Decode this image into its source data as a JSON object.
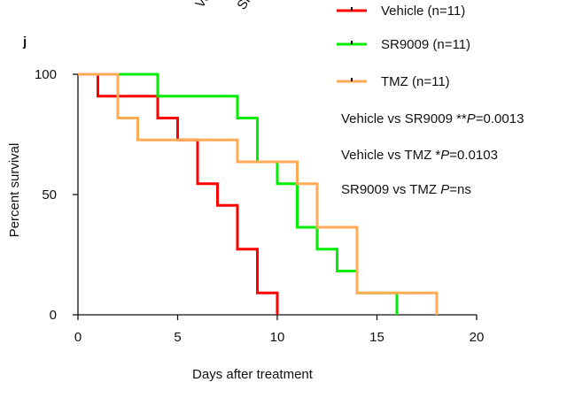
{
  "panel_label": "j",
  "top_fragments": [
    "Ve",
    "SR"
  ],
  "chart_data": {
    "type": "line",
    "step": true,
    "xlabel": "Days after treatment",
    "ylabel": "Percent survival",
    "xlim": [
      0,
      20
    ],
    "ylim": [
      0,
      100
    ],
    "xticks": [
      0,
      5,
      10,
      15,
      20
    ],
    "yticks": [
      0,
      50,
      100
    ],
    "grid": false,
    "legend_position": "top-right",
    "series": [
      {
        "name": "Vehicle (n=11)",
        "color": "#ff0000",
        "points": [
          [
            0,
            100
          ],
          [
            1,
            90.9
          ],
          [
            4,
            81.8
          ],
          [
            5,
            72.7
          ],
          [
            6,
            54.5
          ],
          [
            7,
            45.5
          ],
          [
            8,
            27.3
          ],
          [
            9,
            9.1
          ],
          [
            10,
            0
          ]
        ]
      },
      {
        "name": "SR9009 (n=11)",
        "color": "#00ee00",
        "points": [
          [
            0,
            100
          ],
          [
            4,
            90.9
          ],
          [
            8,
            81.8
          ],
          [
            9,
            63.6
          ],
          [
            10,
            54.5
          ],
          [
            11,
            36.4
          ],
          [
            12,
            27.3
          ],
          [
            13,
            18.2
          ],
          [
            14,
            9.1
          ],
          [
            16,
            0
          ]
        ]
      },
      {
        "name": "TMZ (n=11)",
        "color": "#ffaa55",
        "points": [
          [
            0,
            100
          ],
          [
            2,
            81.8
          ],
          [
            3,
            72.7
          ],
          [
            8,
            63.6
          ],
          [
            11,
            54.5
          ],
          [
            12,
            36.4
          ],
          [
            14,
            9.1
          ],
          [
            18,
            0
          ]
        ]
      }
    ],
    "annotations": [
      {
        "pre": "Vehicle vs SR9009 **",
        "p": "P",
        "post": "=0.0013"
      },
      {
        "pre": "Vehicle vs TMZ *",
        "p": "P",
        "post": "=0.0103"
      },
      {
        "pre": "SR9009 vs TMZ ",
        "p": "P",
        "post": "=ns"
      }
    ]
  }
}
